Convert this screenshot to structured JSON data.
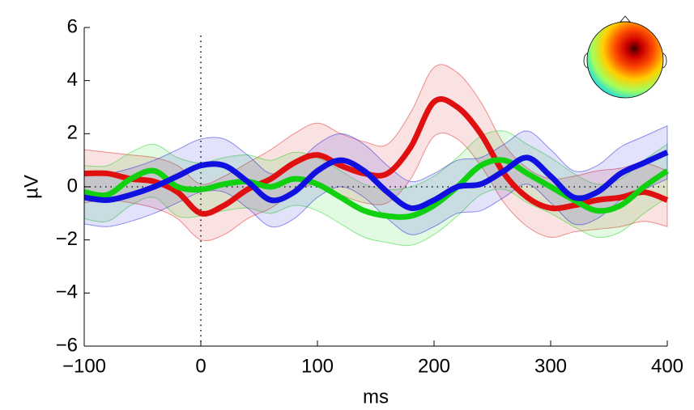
{
  "chart_data": {
    "type": "line",
    "xlabel": "ms",
    "ylabel": "µV",
    "x": [
      -100,
      -80,
      -60,
      -40,
      -20,
      0,
      20,
      40,
      60,
      80,
      100,
      120,
      140,
      160,
      180,
      200,
      220,
      240,
      260,
      280,
      300,
      320,
      340,
      360,
      380,
      400
    ],
    "series": [
      {
        "color": "#e01010",
        "values": [
          0.5,
          0.5,
          0.3,
          0.2,
          -0.2,
          -1.0,
          -0.7,
          -0.1,
          0.3,
          0.9,
          1.2,
          0.8,
          0.5,
          0.5,
          1.5,
          3.2,
          3.0,
          2.0,
          0.5,
          -0.4,
          -0.8,
          -0.7,
          -0.5,
          -0.4,
          -0.2,
          -0.5
        ],
        "upper": [
          1.4,
          1.3,
          1.2,
          1.1,
          0.8,
          0.1,
          0.4,
          0.9,
          1.4,
          2.0,
          2.4,
          2.0,
          1.7,
          1.6,
          2.8,
          4.5,
          4.3,
          3.2,
          1.6,
          0.7,
          0.3,
          0.4,
          0.6,
          0.7,
          0.9,
          0.6
        ],
        "lower": [
          -0.6,
          -0.5,
          -0.6,
          -0.8,
          -1.2,
          -2.0,
          -1.8,
          -1.2,
          -0.8,
          -0.2,
          0.1,
          -0.3,
          -0.6,
          -0.6,
          0.3,
          1.9,
          1.8,
          0.8,
          -0.6,
          -1.5,
          -1.9,
          -1.7,
          -1.6,
          -1.5,
          -1.3,
          -1.5
        ]
      },
      {
        "color": "#10d010",
        "values": [
          -0.2,
          -0.3,
          0.3,
          0.6,
          0.0,
          -0.1,
          0.1,
          0.2,
          0.0,
          0.3,
          0.1,
          -0.4,
          -0.9,
          -1.1,
          -1.1,
          -0.7,
          0.0,
          0.8,
          1.0,
          0.5,
          0.0,
          -0.5,
          -0.9,
          -0.7,
          0.0,
          0.6
        ],
        "upper": [
          0.8,
          0.8,
          1.3,
          1.6,
          1.1,
          0.9,
          1.1,
          1.2,
          1.0,
          1.3,
          1.1,
          0.6,
          0.1,
          -0.1,
          0.0,
          0.4,
          1.1,
          1.9,
          2.1,
          1.6,
          1.1,
          0.5,
          0.1,
          0.3,
          1.0,
          1.6
        ],
        "lower": [
          -1.2,
          -1.3,
          -0.7,
          -0.4,
          -1.1,
          -1.1,
          -0.9,
          -0.8,
          -1.0,
          -0.7,
          -0.9,
          -1.4,
          -1.9,
          -2.1,
          -2.2,
          -1.8,
          -1.1,
          -0.3,
          -0.1,
          -0.6,
          -1.0,
          -1.5,
          -1.9,
          -1.7,
          -1.0,
          -0.4
        ]
      },
      {
        "color": "#1010e0",
        "values": [
          -0.4,
          -0.5,
          -0.3,
          0.0,
          0.4,
          0.8,
          0.8,
          0.2,
          -0.5,
          -0.2,
          0.6,
          1.0,
          0.6,
          -0.2,
          -0.8,
          -0.5,
          0.0,
          0.1,
          0.6,
          1.1,
          0.4,
          -0.4,
          -0.2,
          0.5,
          0.9,
          1.3
        ],
        "upper": [
          0.6,
          0.5,
          0.7,
          1.0,
          1.4,
          1.8,
          1.8,
          1.2,
          0.5,
          0.8,
          1.6,
          2.0,
          1.6,
          0.8,
          0.2,
          0.5,
          1.0,
          1.1,
          1.6,
          2.1,
          1.4,
          0.6,
          0.8,
          1.5,
          1.9,
          2.3
        ],
        "lower": [
          -1.4,
          -1.5,
          -1.3,
          -1.0,
          -0.6,
          -0.2,
          -0.2,
          -0.8,
          -1.5,
          -1.2,
          -0.4,
          0.0,
          -0.4,
          -1.2,
          -1.8,
          -1.5,
          -1.0,
          -0.9,
          -0.4,
          0.1,
          -0.6,
          -1.4,
          -1.2,
          -0.5,
          -0.1,
          0.3
        ]
      }
    ],
    "xlim": [
      -100,
      400
    ],
    "xticks": [
      {
        "value": -100,
        "label": "−100"
      },
      0,
      100,
      200,
      300,
      400
    ],
    "ylim": [
      -6,
      6
    ],
    "yticks": [
      {
        "value": -6,
        "label": "−6"
      },
      {
        "value": -4,
        "label": "−4"
      },
      {
        "value": -2,
        "label": "−2"
      },
      0,
      2,
      4,
      6
    ]
  }
}
